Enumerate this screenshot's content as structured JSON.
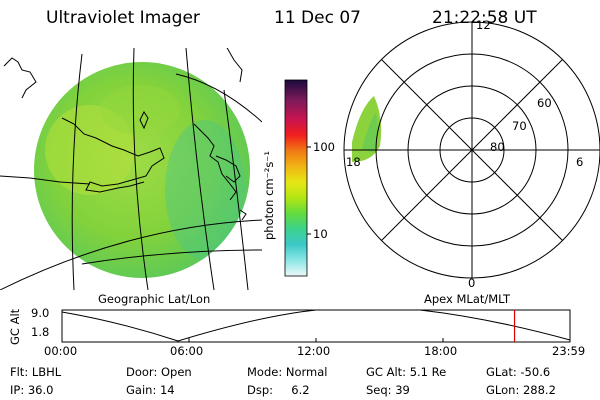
{
  "header": {
    "instrument": "Ultraviolet Imager",
    "date": "11 Dec 07",
    "time": "21:22:58 UT"
  },
  "colorbar": {
    "unit_label": "photon cm⁻²s⁻¹",
    "ticks": [
      "100",
      "10"
    ],
    "colors": [
      "#1a0a3c",
      "#7a1a5a",
      "#c81450",
      "#f01e1e",
      "#f07814",
      "#f0b414",
      "#e6e614",
      "#b4e614",
      "#64dc3c",
      "#3cd28c",
      "#3cc8c8",
      "#8ce6e6",
      "#d2f0f0"
    ]
  },
  "left_map": {
    "caption": "Geographic Lat/Lon",
    "fill_color": "#8cd23c"
  },
  "right_polar": {
    "caption": "Apex MLat/MLT",
    "lat_labels": [
      "60",
      "70",
      "80"
    ],
    "mlt_labels": {
      "top": "12",
      "bottom": "0",
      "left": "18",
      "right": "6"
    }
  },
  "altitude_panel": {
    "y_title": "GC Alt",
    "y_ticks": [
      "9.0",
      "1.8"
    ],
    "x_ticks": [
      "00:00",
      "06:00",
      "12:00",
      "18:00",
      "23:59"
    ],
    "current_time_marker_hour": 21.38,
    "marker_color": "#e00000"
  },
  "info": {
    "flt": "Flt: LBHL",
    "ip": "IP: 36.0",
    "door": "Door: Open",
    "gain": "Gain: 14",
    "mode": "Mode: Normal",
    "dsp": "Dsp:     6.2",
    "gc_alt": "GC Alt: 5.1 Re",
    "seq": "Seq: 39",
    "glat": "GLat: -50.6",
    "glon": "GLon: 288.2"
  }
}
